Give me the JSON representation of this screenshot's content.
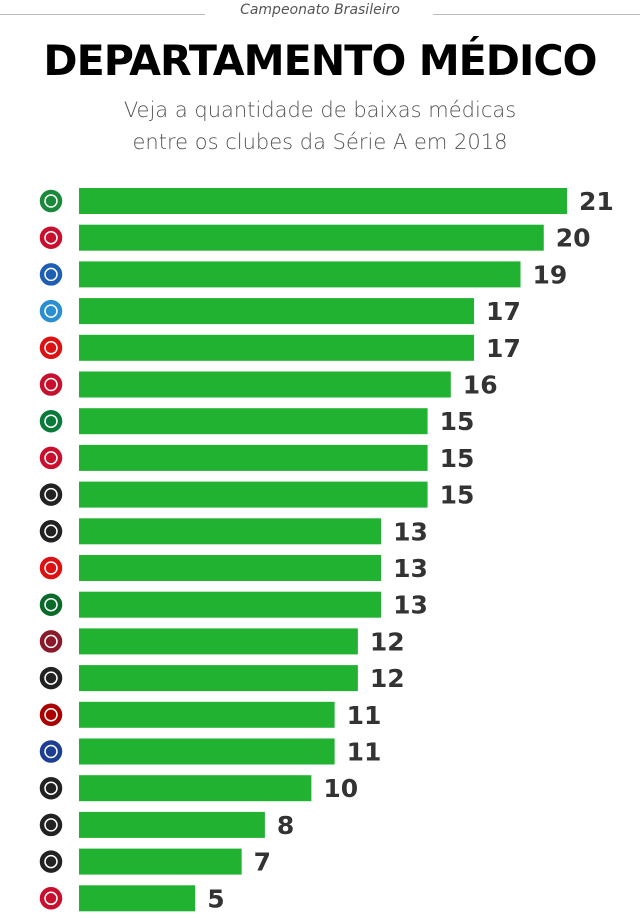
{
  "kicker": "Campeonato Brasileiro",
  "title": "DEPARTAMENTO MÉDICO",
  "subtitle_line1": "Veja a quantidade de baixas médicas",
  "subtitle_line2": "entre os clubes da Série A em 2018",
  "chart_data": {
    "type": "bar",
    "orientation": "horizontal",
    "title": "DEPARTAMENTO MÉDICO",
    "categories": [
      "chapecoense-crest",
      "vitoria-crest",
      "bahia-crest",
      "gremio-crest",
      "sport-crest",
      "sao-paulo-crest",
      "america-mg-crest",
      "parana-crest",
      "botafogo-crest",
      "ceara-crest",
      "internacional-crest",
      "palmeiras-crest",
      "fluminense-crest",
      "santos-crest",
      "atletico-pr-crest",
      "cruzeiro-crest",
      "corinthians-crest",
      "vasco-crest",
      "atletico-mg-crest",
      "flamengo-crest"
    ],
    "values": [
      21,
      20,
      19,
      17,
      17,
      16,
      15,
      15,
      15,
      13,
      13,
      13,
      12,
      12,
      11,
      11,
      10,
      8,
      7,
      5
    ],
    "crest_colors": [
      "#1a8a3a",
      "#c8102e",
      "#1e5fb4",
      "#2a8fd0",
      "#d11",
      "#c8102e",
      "#0a7a3a",
      "#c8102e",
      "#222",
      "#222",
      "#d11",
      "#0a6a2a",
      "#8a1a2a",
      "#222",
      "#a00",
      "#1c3f94",
      "#222",
      "#222",
      "#222",
      "#c8102e"
    ],
    "bar_color": "#22b232",
    "xlim": [
      0,
      21
    ],
    "grid": false
  }
}
